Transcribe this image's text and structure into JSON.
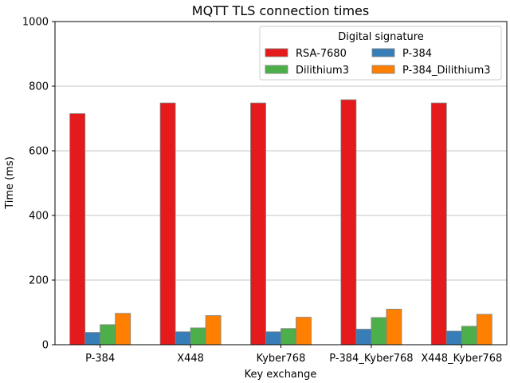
{
  "chart_data": {
    "type": "bar",
    "title": "MQTT TLS connection times",
    "xlabel": "Key exchange",
    "ylabel": "Time (ms)",
    "ylim": [
      0,
      1000
    ],
    "yticks": [
      0,
      200,
      400,
      600,
      800,
      1000
    ],
    "grid": "horizontal",
    "legend": {
      "title": "Digital signature",
      "placement": "top-right",
      "columns": 2
    },
    "categories": [
      "P-384",
      "X448",
      "Kyber768",
      "P-384_Kyber768",
      "X448_Kyber768"
    ],
    "series": [
      {
        "name": "RSA-7680",
        "color": "#e41a1c",
        "values": [
          715,
          748,
          748,
          758,
          748
        ]
      },
      {
        "name": "P-384",
        "color": "#377eb8",
        "values": [
          38,
          40,
          40,
          48,
          42
        ]
      },
      {
        "name": "Dilithium3",
        "color": "#4daf4a",
        "values": [
          62,
          52,
          50,
          84,
          57
        ]
      },
      {
        "name": "P-384_Dilithium3",
        "color": "#ff7f00",
        "values": [
          97,
          90,
          85,
          110,
          94
        ]
      }
    ]
  }
}
